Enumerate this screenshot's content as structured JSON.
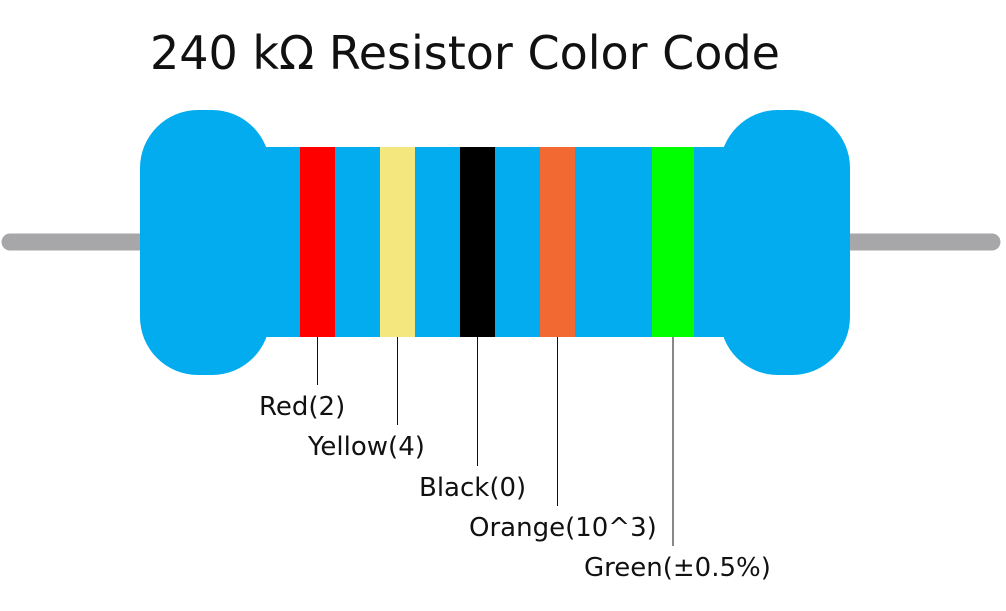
{
  "title": "240 kΩ Resistor Color Code",
  "colors": {
    "body": "#03acee",
    "lead": "#a7a7a9",
    "leader_line": "#111111",
    "label_text": "#111111"
  },
  "bands": [
    {
      "name": "red",
      "color": "#fe0000",
      "label": "Red(2)"
    },
    {
      "name": "yellow",
      "color": "#f3e77e",
      "label": "Yellow(4)"
    },
    {
      "name": "black",
      "color": "#000000",
      "label": "Black(0)"
    },
    {
      "name": "orange",
      "color": "#f26a32",
      "label": "Orange(10^3)"
    },
    {
      "name": "green",
      "color": "#00ff00",
      "label": "Green(±0.5%)"
    }
  ]
}
